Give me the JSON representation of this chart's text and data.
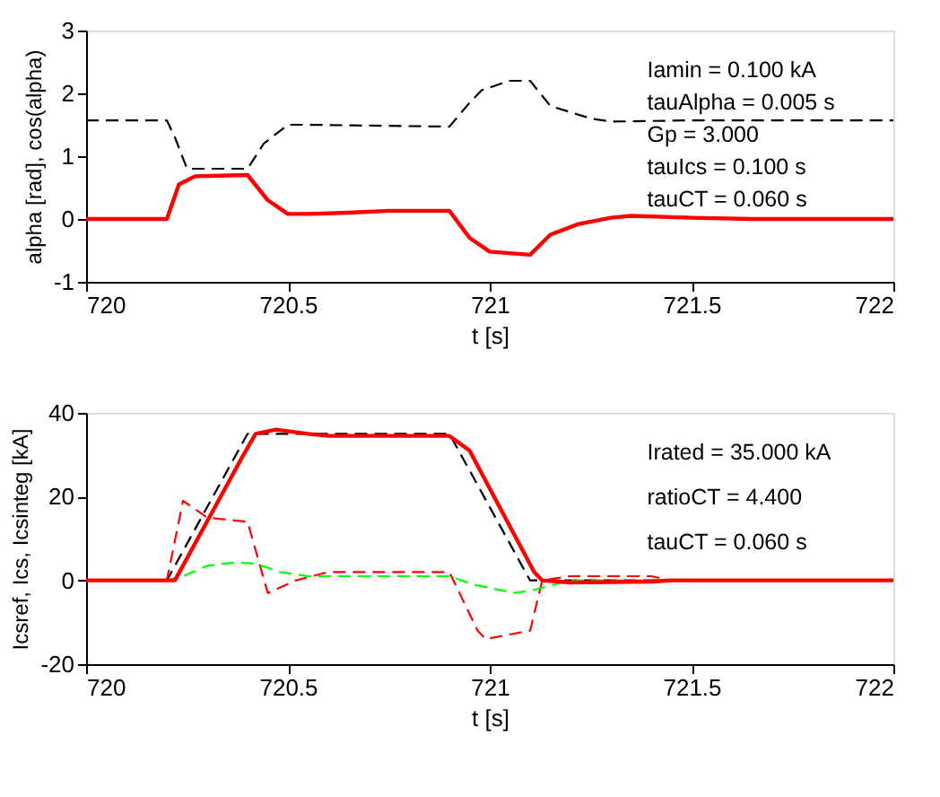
{
  "chart_data": [
    {
      "type": "line",
      "xlabel": "t [s]",
      "ylabel": "alpha [rad], cos(alpha)",
      "xlim": [
        720,
        722
      ],
      "xticks": [
        720,
        720.5,
        721,
        721.5,
        722
      ],
      "ylim": [
        -1,
        3
      ],
      "yticks": [
        -1,
        0,
        1,
        2,
        3
      ],
      "annotations": [
        "Iamin =  0.100 kA",
        "tauAlpha = 0.005 s",
        "Gp = 3.000",
        "tauIcs = 0.100 s",
        "tauCT = 0.060 s"
      ],
      "series": [
        {
          "color": "#000000",
          "line_style": "dashed",
          "x": [
            720,
            720.2,
            720.22,
            720.25,
            720.4,
            720.44,
            720.5,
            720.55,
            720.9,
            720.95,
            720.98,
            721.05,
            721.1,
            721.15,
            721.25,
            721.3,
            721.5,
            722
          ],
          "values": [
            1.57,
            1.57,
            1.3,
            0.8,
            0.8,
            1.2,
            1.5,
            1.5,
            1.47,
            1.85,
            2.05,
            2.2,
            2.2,
            1.8,
            1.6,
            1.55,
            1.57,
            1.57
          ]
        },
        {
          "color": "#ff0000",
          "line_style": "solid",
          "x": [
            720,
            720.2,
            720.23,
            720.27,
            720.4,
            720.45,
            720.5,
            720.55,
            720.65,
            720.75,
            720.9,
            720.95,
            721,
            721.1,
            721.15,
            721.22,
            721.3,
            721.35,
            721.5,
            721.65,
            722
          ],
          "values": [
            0,
            0,
            0.55,
            0.68,
            0.7,
            0.3,
            0.08,
            0.08,
            0.1,
            0.13,
            0.13,
            -0.3,
            -0.52,
            -0.57,
            -0.25,
            -0.08,
            0.02,
            0.05,
            0.02,
            0,
            0
          ]
        }
      ]
    },
    {
      "type": "line",
      "xlabel": "t [s]",
      "ylabel": "Icsref, Ics, Icsinteg [kA]",
      "xlim": [
        720,
        722
      ],
      "xticks": [
        720,
        720.5,
        721,
        721.5,
        722
      ],
      "ylim": [
        -20,
        40
      ],
      "yticks": [
        -20,
        0,
        20,
        40
      ],
      "annotations": [
        "Irated = 35.000 kA",
        "ratioCT =  4.400",
        "tauCT =  0.060 s"
      ],
      "series": [
        {
          "color": "#000000",
          "line_style": "dashed",
          "x": [
            720,
            720.2,
            720.4,
            720.9,
            721.1,
            722
          ],
          "values": [
            0,
            0,
            35,
            35,
            0,
            0
          ]
        },
        {
          "color": "#ff0000",
          "line_style": "dashed",
          "x": [
            720,
            720.2,
            720.24,
            720.3,
            720.4,
            720.45,
            720.52,
            720.6,
            720.9,
            720.97,
            720.99,
            721.1,
            721.13,
            721.2,
            721.4,
            721.45,
            722
          ],
          "values": [
            0,
            0,
            19,
            15,
            14,
            -3,
            0,
            2,
            2,
            -12,
            -14,
            -12,
            0,
            1,
            1,
            0,
            0
          ]
        },
        {
          "color": "#00ff00",
          "line_style": "dashed",
          "x": [
            720,
            720.2,
            720.24,
            720.3,
            720.37,
            720.42,
            720.48,
            720.55,
            720.9,
            720.96,
            721.06,
            721.1,
            721.2,
            722
          ],
          "values": [
            0,
            0,
            1,
            3.5,
            4.3,
            4,
            2,
            1,
            1,
            -1,
            -3,
            -2.5,
            0,
            0
          ]
        },
        {
          "color": "#ff0000",
          "line_style": "solid",
          "x": [
            720,
            720.22,
            720.39,
            720.42,
            720.47,
            720.55,
            720.6,
            720.9,
            720.95,
            721.11,
            721.13,
            721.2,
            721.4,
            721.45,
            722
          ],
          "values": [
            0,
            0,
            30,
            35,
            36,
            35,
            34.5,
            34.5,
            31,
            2,
            0,
            -0.5,
            -0.3,
            0,
            0
          ]
        }
      ]
    }
  ]
}
